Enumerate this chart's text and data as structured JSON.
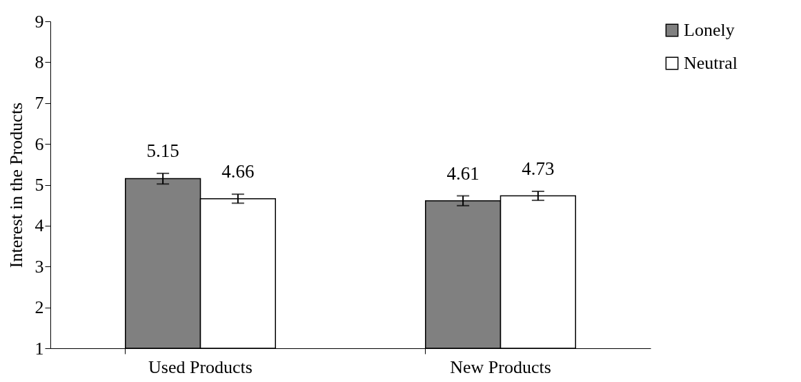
{
  "chart_data": {
    "type": "bar",
    "ylabel": "Interest in the Products",
    "categories": [
      "Used Products",
      "New Products"
    ],
    "series": [
      {
        "name": "Lonely",
        "color": "#808080",
        "values": [
          5.15,
          4.61
        ],
        "errors": [
          0.13,
          0.12
        ]
      },
      {
        "name": "Neutral",
        "color": "#ffffff",
        "values": [
          4.66,
          4.73
        ],
        "errors": [
          0.11,
          0.11
        ]
      }
    ],
    "ylim": [
      1,
      9
    ],
    "yticks": [
      1,
      2,
      3,
      4,
      5,
      6,
      7,
      8,
      9
    ],
    "grid": false,
    "legend": "right",
    "data_labels": true
  }
}
